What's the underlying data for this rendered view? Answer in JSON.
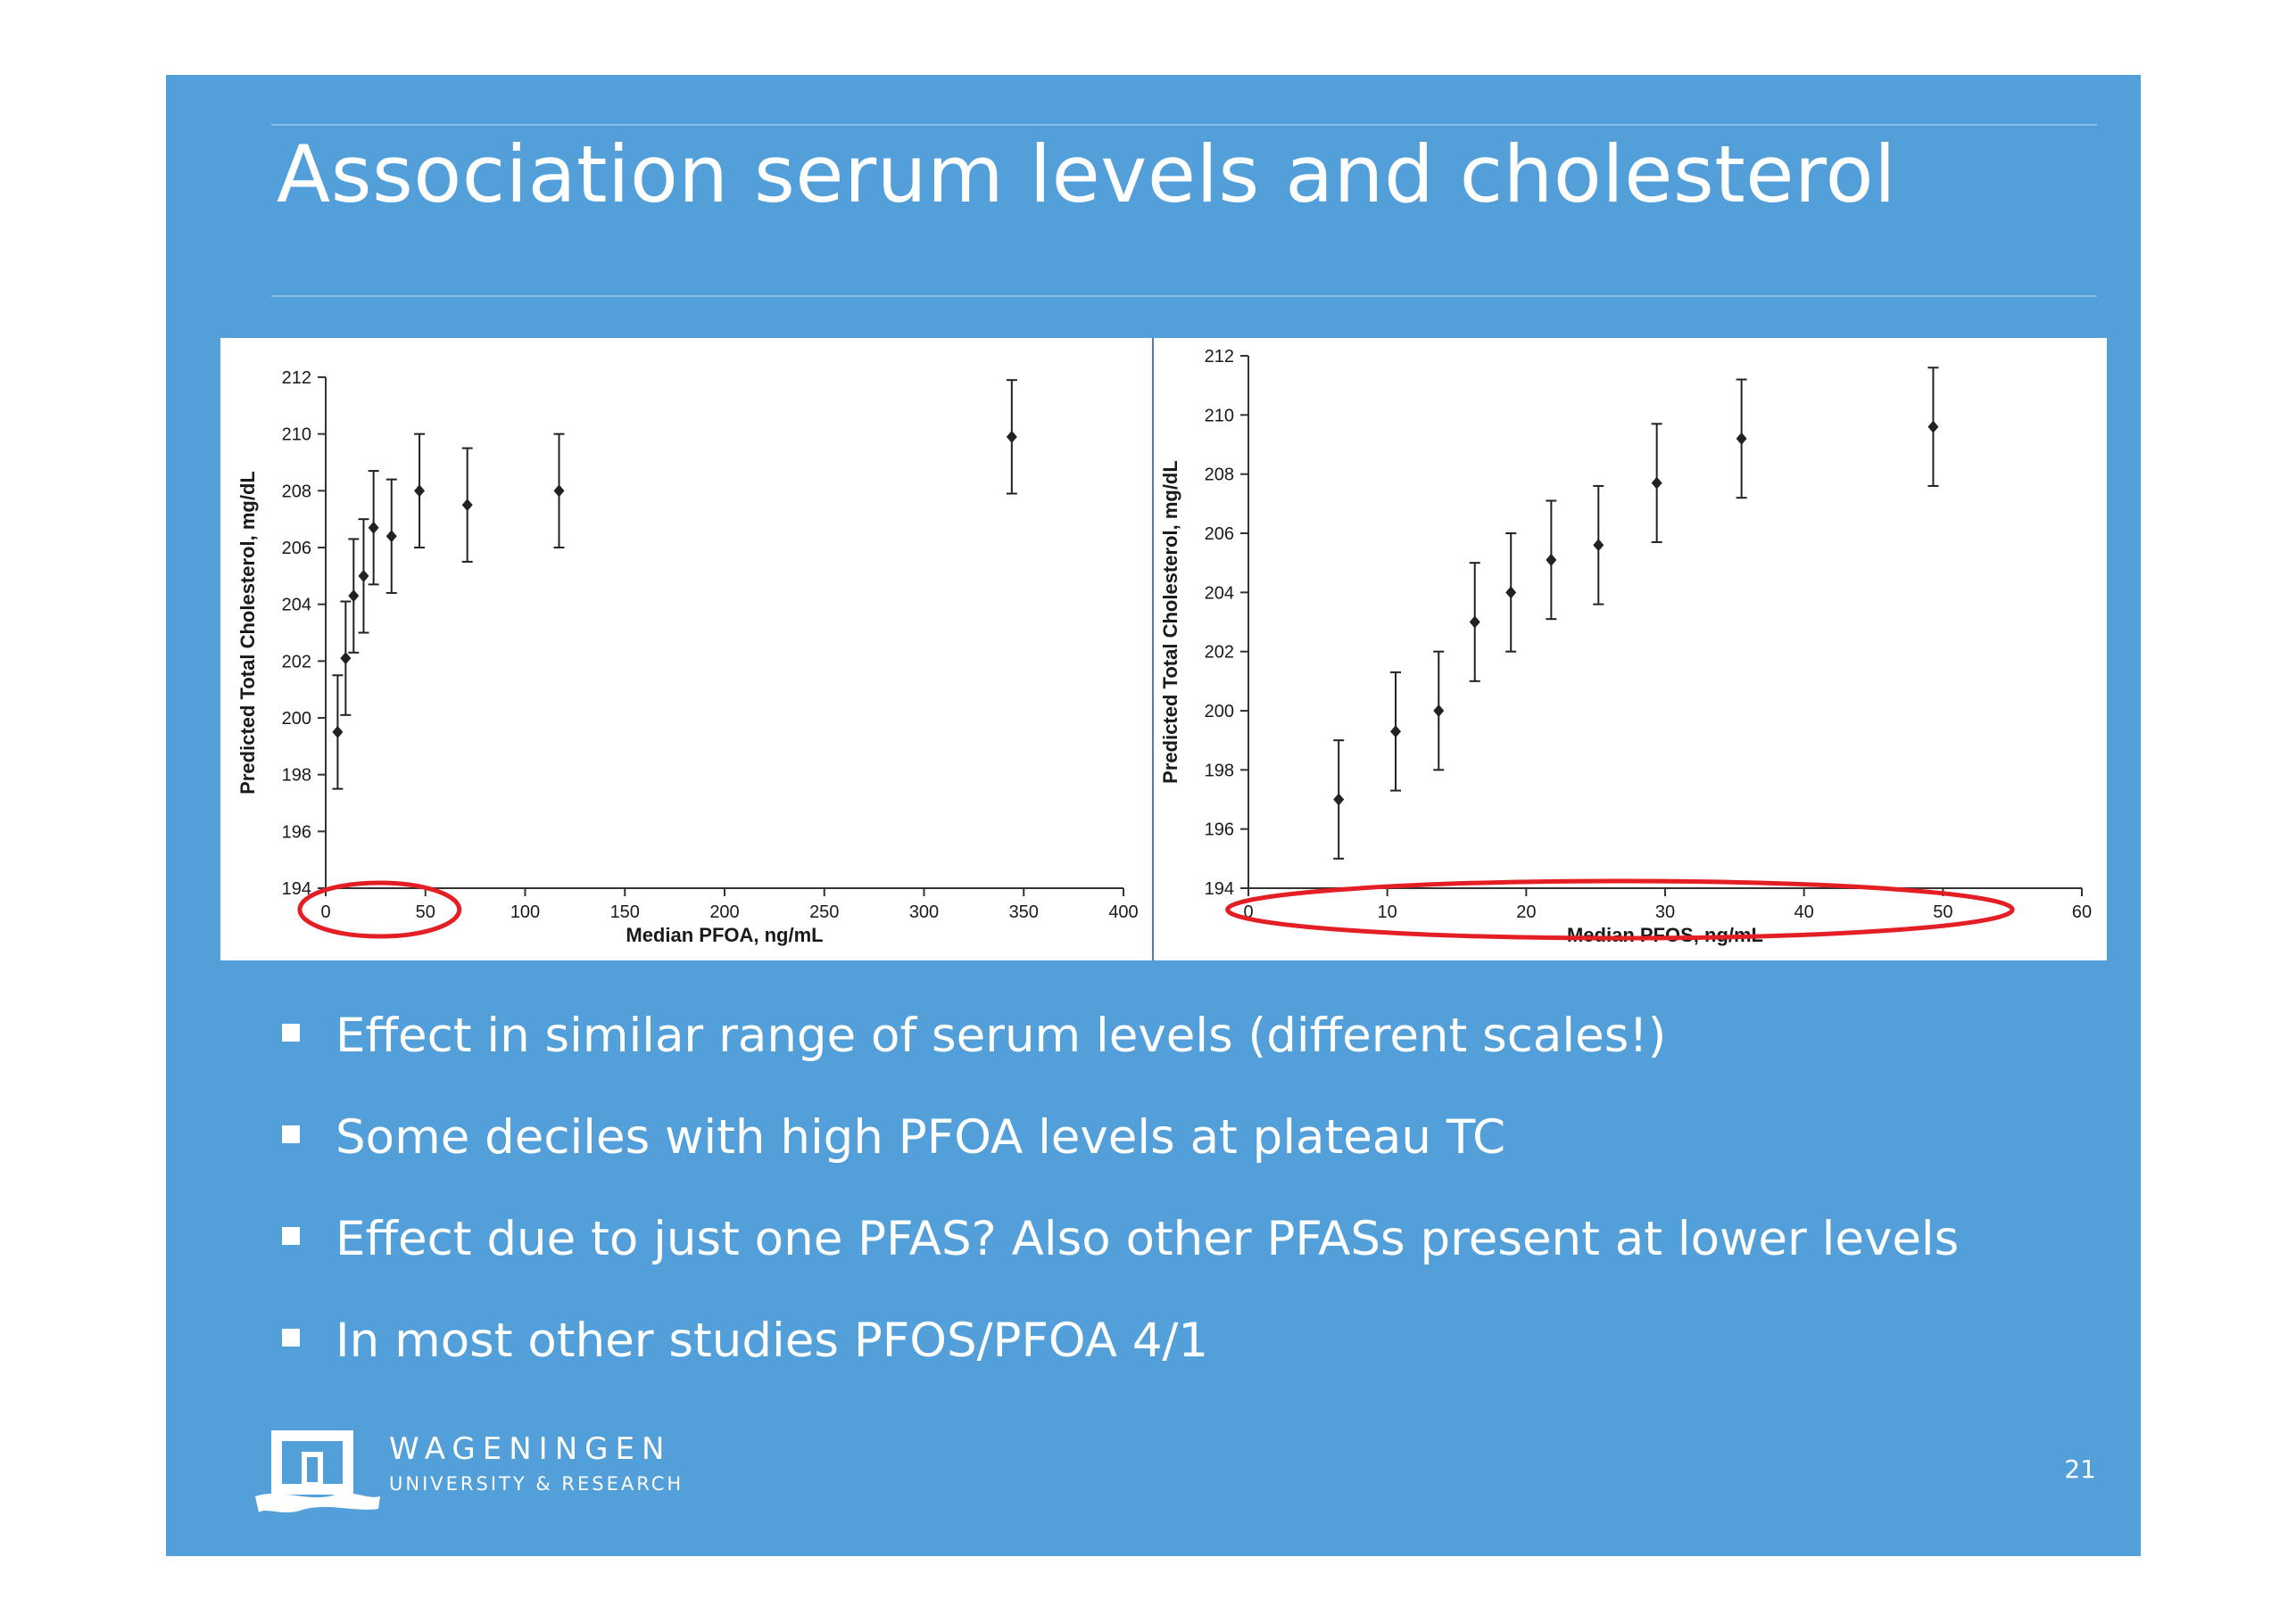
{
  "slide": {
    "title": "Association serum levels and cholesterol",
    "bullets": [
      "Effect in similar range of serum levels (different scales!)",
      "Some deciles with high PFOA levels at plateau TC",
      "Effect due to just one PFAS? Also other PFASs present at lower levels",
      "In most other studies PFOS/PFOA 4/1"
    ],
    "page_number": "21",
    "logo": {
      "name": "WAGENINGEN",
      "subtitle": "UNIVERSITY & RESEARCH"
    },
    "annotation_color": "#e31e24",
    "background_color": "#529fd9"
  },
  "chart_data": [
    {
      "type": "scatter",
      "xlabel": "Median PFOA, ng/mL",
      "ylabel": "Predicted Total Cholesterol, mg/dL",
      "xlim": [
        0,
        400
      ],
      "ylim": [
        194,
        212
      ],
      "xticks": [
        0,
        50,
        100,
        150,
        200,
        250,
        300,
        350,
        400
      ],
      "yticks": [
        194,
        196,
        198,
        200,
        202,
        204,
        206,
        208,
        210,
        212
      ],
      "points": [
        {
          "x": 6,
          "y": 199.5,
          "lo": 197.5,
          "hi": 201.5
        },
        {
          "x": 10,
          "y": 202.1,
          "lo": 200.1,
          "hi": 204.1
        },
        {
          "x": 14,
          "y": 204.3,
          "lo": 202.3,
          "hi": 206.3
        },
        {
          "x": 19,
          "y": 205.0,
          "lo": 203.0,
          "hi": 207.0
        },
        {
          "x": 24,
          "y": 206.7,
          "lo": 204.7,
          "hi": 208.7
        },
        {
          "x": 33,
          "y": 206.4,
          "lo": 204.4,
          "hi": 208.4
        },
        {
          "x": 47,
          "y": 208.0,
          "lo": 206.0,
          "hi": 210.0
        },
        {
          "x": 71,
          "y": 207.5,
          "lo": 205.5,
          "hi": 209.5
        },
        {
          "x": 117,
          "y": 208.0,
          "lo": 206.0,
          "hi": 210.0
        },
        {
          "x": 344,
          "y": 209.9,
          "lo": 207.9,
          "hi": 211.9
        }
      ],
      "highlight": {
        "x_from": -13,
        "x_to": 67
      }
    },
    {
      "type": "scatter",
      "xlabel": "Median PFOS, ng/mL",
      "ylabel": "Predicted Total Cholesterol, mg/dL",
      "xlim": [
        0,
        60
      ],
      "ylim": [
        194,
        212
      ],
      "xticks": [
        0,
        10,
        20,
        30,
        40,
        50,
        60
      ],
      "yticks": [
        194,
        196,
        198,
        200,
        202,
        204,
        206,
        208,
        210,
        212
      ],
      "points": [
        {
          "x": 6.5,
          "y": 197.0,
          "lo": 195.0,
          "hi": 199.0
        },
        {
          "x": 10.6,
          "y": 199.3,
          "lo": 197.3,
          "hi": 201.3
        },
        {
          "x": 13.7,
          "y": 200.0,
          "lo": 198.0,
          "hi": 202.0
        },
        {
          "x": 16.3,
          "y": 203.0,
          "lo": 201.0,
          "hi": 205.0
        },
        {
          "x": 18.9,
          "y": 204.0,
          "lo": 202.0,
          "hi": 206.0
        },
        {
          "x": 21.8,
          "y": 205.1,
          "lo": 203.1,
          "hi": 207.1
        },
        {
          "x": 25.2,
          "y": 205.6,
          "lo": 203.6,
          "hi": 207.6
        },
        {
          "x": 29.4,
          "y": 207.7,
          "lo": 205.7,
          "hi": 209.7
        },
        {
          "x": 35.5,
          "y": 209.2,
          "lo": 207.2,
          "hi": 211.2
        },
        {
          "x": 49.3,
          "y": 209.6,
          "lo": 207.6,
          "hi": 211.6
        }
      ],
      "highlight": {
        "x_from": -1.5,
        "x_to": 55.0
      }
    }
  ]
}
